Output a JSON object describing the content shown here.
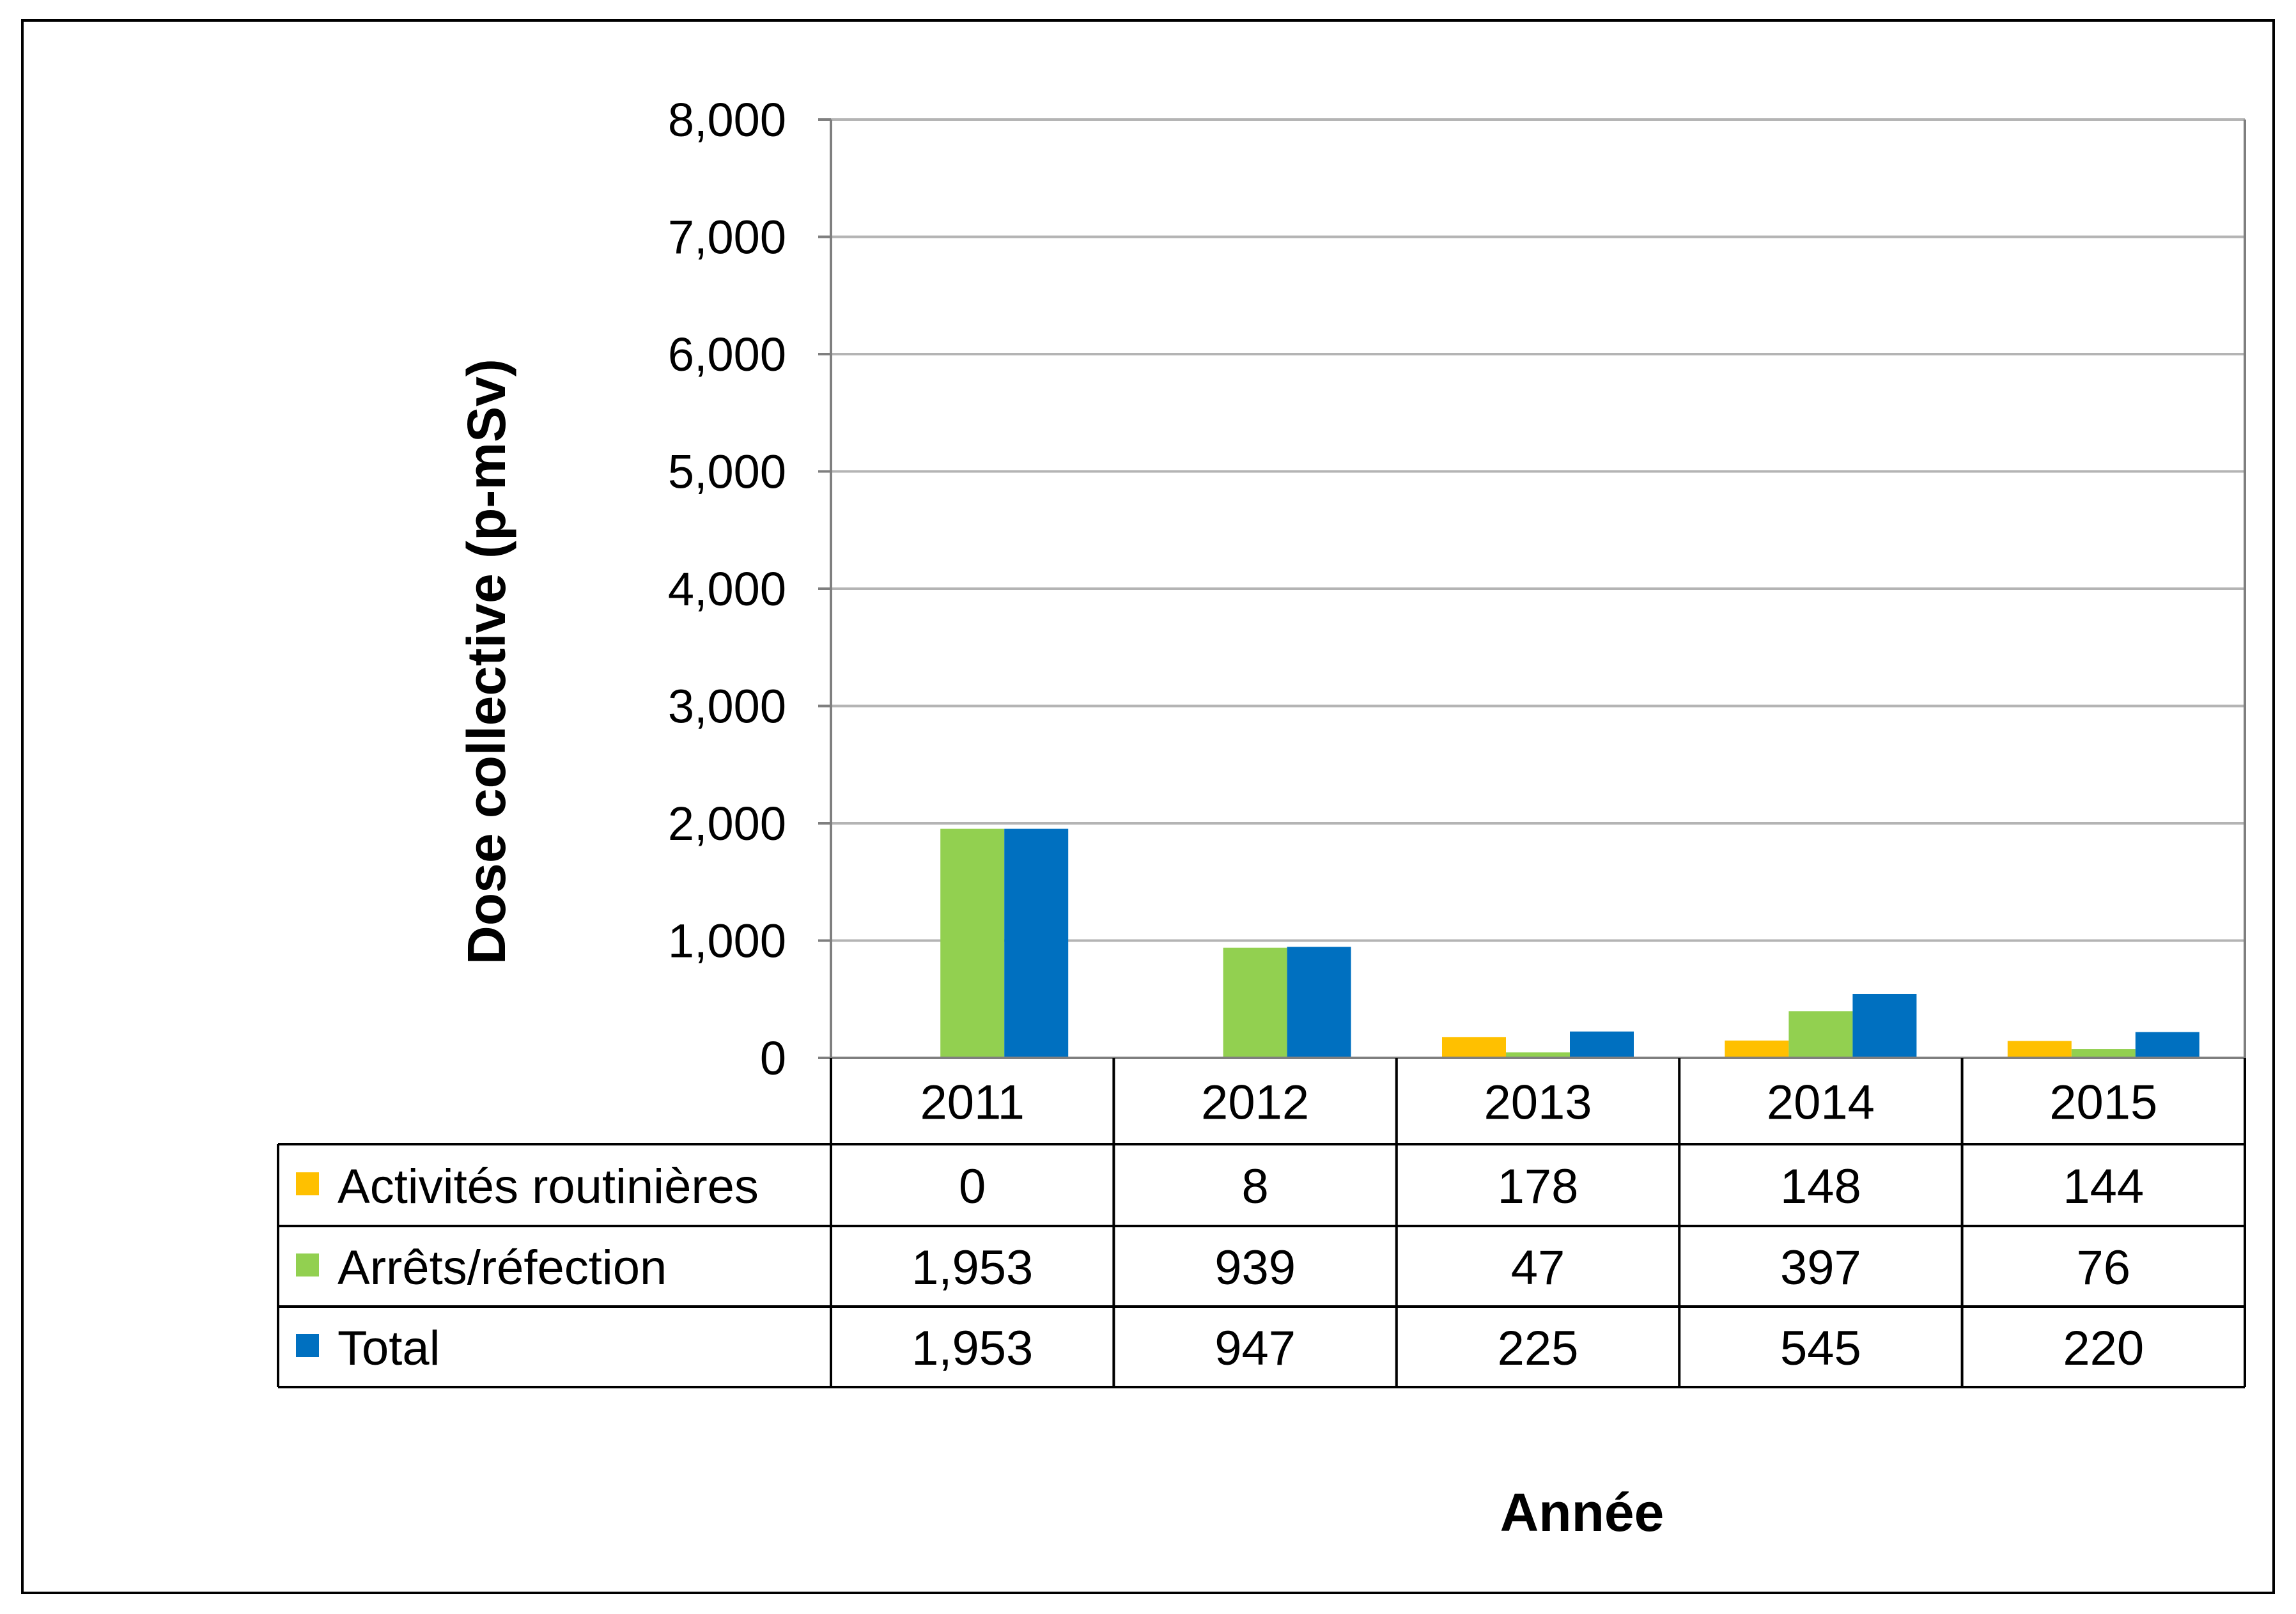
{
  "chart_data": {
    "type": "bar",
    "ylabel": "Dose collective (p-mSv)",
    "xlabel": "Année",
    "categories": [
      "2011",
      "2012",
      "2013",
      "2014",
      "2015"
    ],
    "ylim": [
      0,
      8000
    ],
    "yticks": [
      0,
      1000,
      2000,
      3000,
      4000,
      5000,
      6000,
      7000,
      8000
    ],
    "ytick_labels": [
      "0",
      "1,000",
      "2,000",
      "3,000",
      "4,000",
      "5,000",
      "6,000",
      "7,000",
      "8,000"
    ],
    "grid": true,
    "legend": "data-table",
    "series": [
      {
        "name": "Activités routinières",
        "color": "#ffc000",
        "values": [
          0,
          8,
          178,
          148,
          144
        ],
        "labels": [
          "0",
          "8",
          "178",
          "148",
          "144"
        ]
      },
      {
        "name": "Arrêts/réfection",
        "color": "#92d050",
        "values": [
          1953,
          939,
          47,
          397,
          76
        ],
        "labels": [
          "1,953",
          "939",
          "47",
          "397",
          "76"
        ]
      },
      {
        "name": "Total",
        "color": "#0070c0",
        "values": [
          1953,
          947,
          225,
          545,
          220
        ],
        "labels": [
          "1,953",
          "947",
          "225",
          "545",
          "220"
        ]
      }
    ]
  }
}
